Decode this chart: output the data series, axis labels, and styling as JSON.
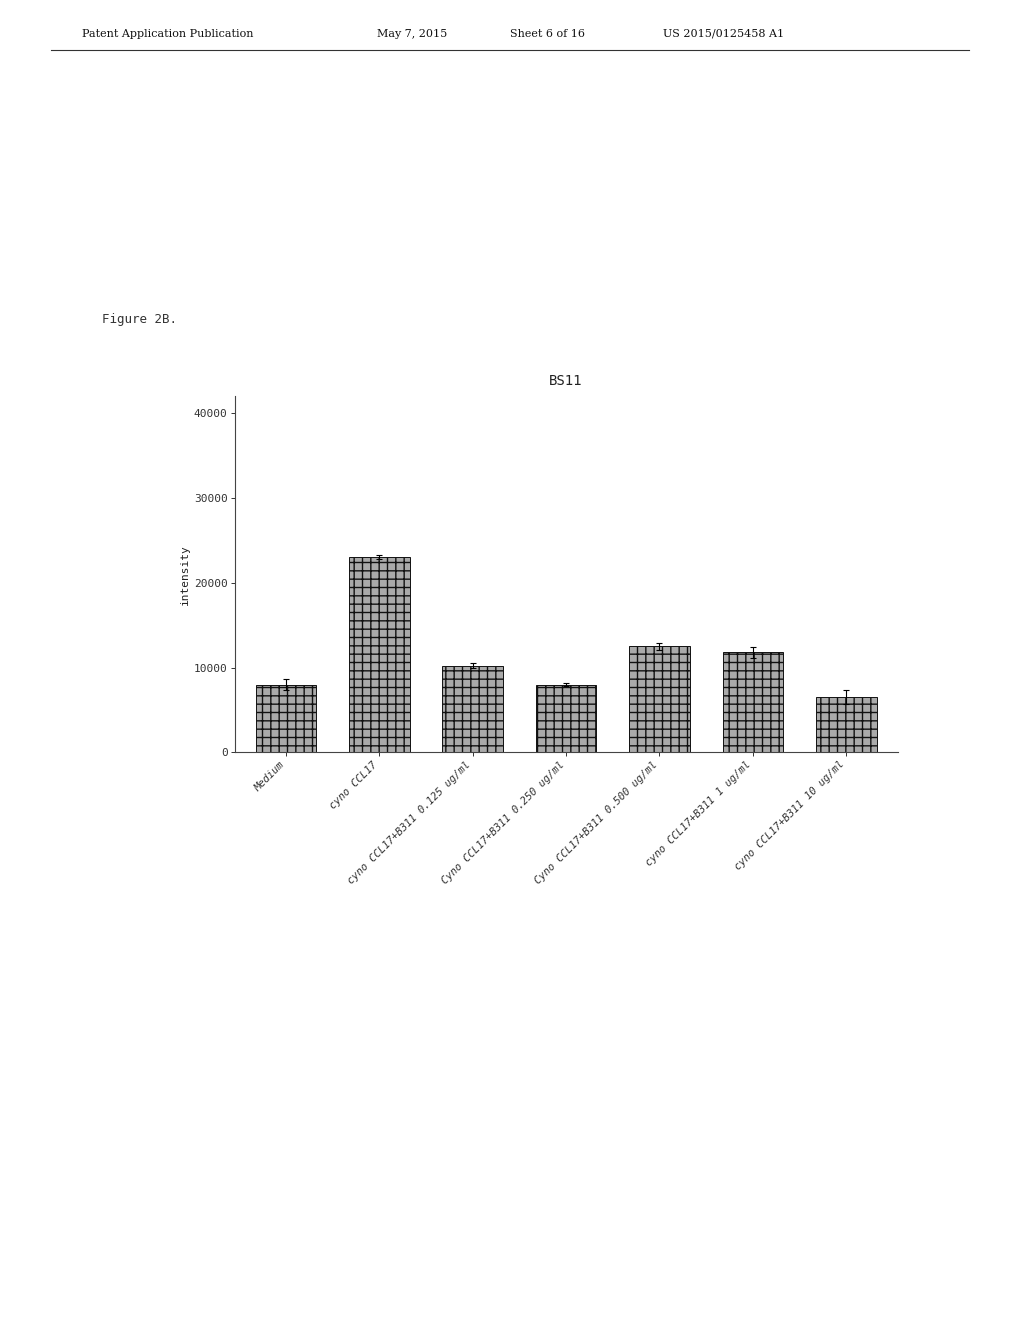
{
  "title": "BS11",
  "ylabel": "intensity",
  "ylim": [
    0,
    42000
  ],
  "yticks": [
    0,
    10000,
    20000,
    30000,
    40000
  ],
  "ytick_labels": [
    "0",
    "10000",
    "20000",
    "30000",
    "40000"
  ],
  "categories": [
    "Medium",
    "cyno CCL17",
    "cyno CCL17+B311 0.125 ug/ml",
    "Cyno CCL17+B311 0.250 ug/ml",
    "Cyno CCL17+B311 0.500 ug/ml",
    "cyno CCL17+B311 1 ug/ml",
    "cyno CCL17+B311 10 ug/ml"
  ],
  "values": [
    8000,
    23000,
    10200,
    8000,
    12500,
    11800,
    6500
  ],
  "errors": [
    600,
    250,
    280,
    180,
    450,
    650,
    800
  ],
  "bar_color": "#aaaaaa",
  "bar_edgecolor": "#111111",
  "hatch": "++",
  "figure_bg": "#ffffff",
  "figure_label": "Figure 2B.",
  "header_left": "Patent Application Publication",
  "header_mid1": "May 7, 2015",
  "header_mid2": "Sheet 6 of 16",
  "header_right": "US 2015/0125458 A1",
  "title_fontsize": 10,
  "axis_fontsize": 8,
  "tick_fontsize": 8,
  "label_fontsize": 7.5
}
